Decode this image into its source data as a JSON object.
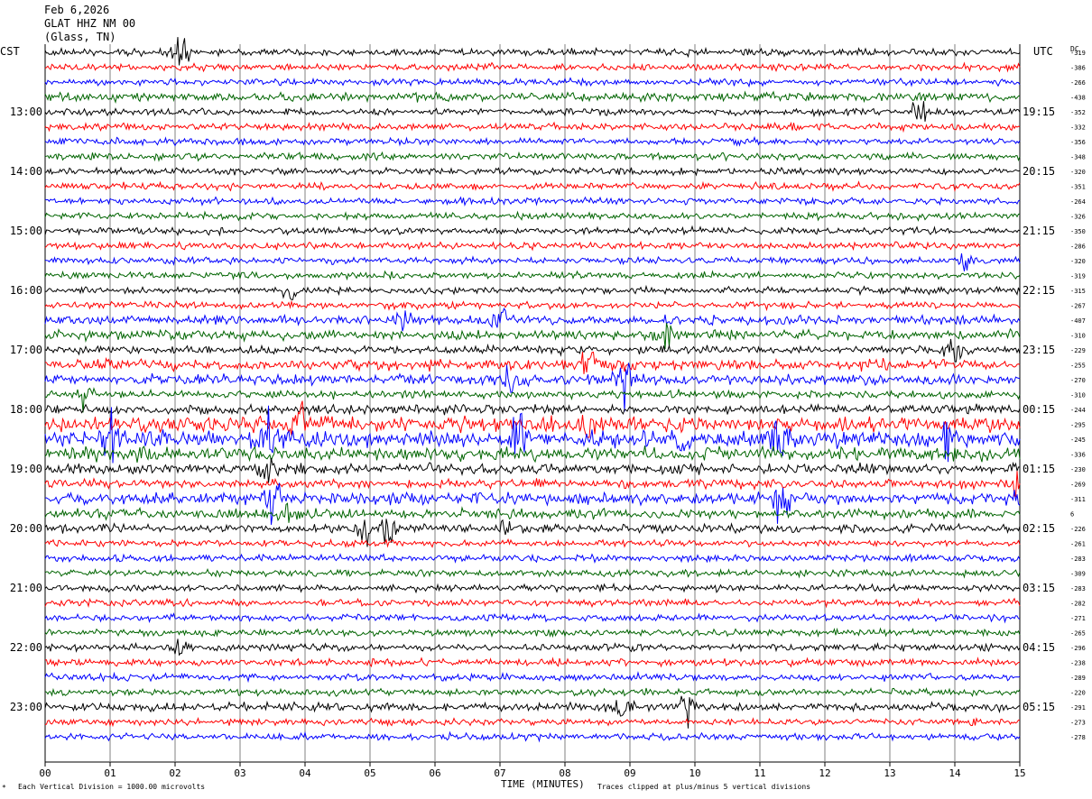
{
  "header": {
    "date": "Feb 6,2026",
    "station": "GLAT HHZ NM 00",
    "location": "(Glass, TN)"
  },
  "left_timezone": "CST",
  "right_timezone": "UTC",
  "dc_label": "DC",
  "footer": {
    "scale_note": "Each Vertical Division = 1000.00 microvolts",
    "clip_note": "Traces clipped at plus/minus 5 vertical divisions",
    "mark": "*"
  },
  "colors": {
    "black": "#000000",
    "red": "#ff0000",
    "blue": "#0000ff",
    "green": "#006400",
    "grid": "#808080"
  },
  "chart_data": {
    "type": "line",
    "title": "GLAT HHZ NM 00",
    "xlabel": "TIME (MINUTES)",
    "xlim": [
      0,
      15
    ],
    "x_ticks": [
      "00",
      "01",
      "02",
      "03",
      "04",
      "05",
      "06",
      "07",
      "08",
      "09",
      "10",
      "11",
      "12",
      "13",
      "14",
      "15"
    ],
    "rows_per_hour": 4,
    "trace_color_cycle": [
      "black",
      "red",
      "blue",
      "green"
    ],
    "left_hour_labels": [
      "13:00",
      "14:00",
      "15:00",
      "16:00",
      "17:00",
      "18:00",
      "19:00",
      "20:00",
      "21:00",
      "22:00",
      "23:00"
    ],
    "right_hour_labels": [
      "19:15",
      "20:15",
      "21:15",
      "22:15",
      "23:15",
      "00:15",
      "01:15",
      "02:15",
      "03:15",
      "04:15",
      "05:15"
    ],
    "hour_label_first_row": 4,
    "dc_offsets": [
      "-319",
      "-386",
      "-266",
      "-438",
      "-352",
      "-332",
      "-356",
      "-348",
      "-320",
      "-351",
      "-264",
      "-326",
      "-350",
      "-286",
      "-320",
      "-319",
      "-315",
      "-267",
      "-407",
      "-310",
      "-229",
      "-255",
      "-270",
      "-310",
      "-244",
      "-295",
      "-245",
      "-336",
      "-230",
      "-269",
      "-311",
      "6",
      "-226",
      "-261",
      "-283",
      "-309",
      "-283",
      "-282",
      "-271",
      "-265",
      "-296",
      "-238",
      "-289",
      "-220",
      "-291",
      "-273",
      "-278"
    ],
    "row_activity": [
      1,
      1,
      1,
      1.3,
      1,
      1,
      1,
      1,
      1,
      1,
      1,
      1,
      1,
      1,
      1,
      1,
      1,
      1,
      1.4,
      1.4,
      1.2,
      1.6,
      1.5,
      1.2,
      1.3,
      2.2,
      2.4,
      2,
      1.5,
      1.3,
      1.8,
      1.4,
      1.2,
      1,
      1,
      1,
      1,
      1,
      1,
      1,
      1,
      1,
      1,
      1,
      1.2,
      1,
      1
    ],
    "events": [
      {
        "row": 0,
        "minute": 2.1,
        "amp": 1.5
      },
      {
        "row": 4,
        "minute": 13.45,
        "amp": 2.8
      },
      {
        "row": 14,
        "minute": 14.15,
        "amp": 2.2
      },
      {
        "row": 16,
        "minute": 3.8,
        "amp": 1.4
      },
      {
        "row": 18,
        "minute": 5.5,
        "amp": 3.5
      },
      {
        "row": 18,
        "minute": 7.05,
        "amp": 3.0
      },
      {
        "row": 19,
        "minute": 9.6,
        "amp": 1.8
      },
      {
        "row": 20,
        "minute": 13.95,
        "amp": 1.8
      },
      {
        "row": 21,
        "minute": 8.4,
        "amp": 3.0
      },
      {
        "row": 22,
        "minute": 8.9,
        "amp": 4.0
      },
      {
        "row": 22,
        "minute": 7.15,
        "amp": 2.0
      },
      {
        "row": 23,
        "minute": 0.6,
        "amp": 1.5
      },
      {
        "row": 25,
        "minute": 3.9,
        "amp": 3.0
      },
      {
        "row": 25,
        "minute": 8.35,
        "amp": 2.8
      },
      {
        "row": 26,
        "minute": 1.0,
        "amp": 3.2
      },
      {
        "row": 26,
        "minute": 3.45,
        "amp": 3.2
      },
      {
        "row": 26,
        "minute": 7.3,
        "amp": 3.0
      },
      {
        "row": 26,
        "minute": 9.75,
        "amp": 3.0
      },
      {
        "row": 26,
        "minute": 11.3,
        "amp": 3.0
      },
      {
        "row": 26,
        "minute": 13.9,
        "amp": 2.8
      },
      {
        "row": 27,
        "minute": 1.4,
        "amp": 2.0
      },
      {
        "row": 28,
        "minute": 3.4,
        "amp": 2.4
      },
      {
        "row": 29,
        "minute": 14.9,
        "amp": 2.0
      },
      {
        "row": 30,
        "minute": 3.5,
        "amp": 3.0
      },
      {
        "row": 30,
        "minute": 11.35,
        "amp": 3.2
      },
      {
        "row": 30,
        "minute": 15.0,
        "amp": 2.2
      },
      {
        "row": 31,
        "minute": 3.75,
        "amp": 1.6
      },
      {
        "row": 32,
        "minute": 4.9,
        "amp": 2.4
      },
      {
        "row": 32,
        "minute": 5.3,
        "amp": 3.0
      },
      {
        "row": 32,
        "minute": 7.1,
        "amp": 1.6
      },
      {
        "row": 40,
        "minute": 2.05,
        "amp": 1.2
      },
      {
        "row": 44,
        "minute": 8.9,
        "amp": 2.0
      },
      {
        "row": 44,
        "minute": 9.9,
        "amp": 2.2
      }
    ]
  }
}
